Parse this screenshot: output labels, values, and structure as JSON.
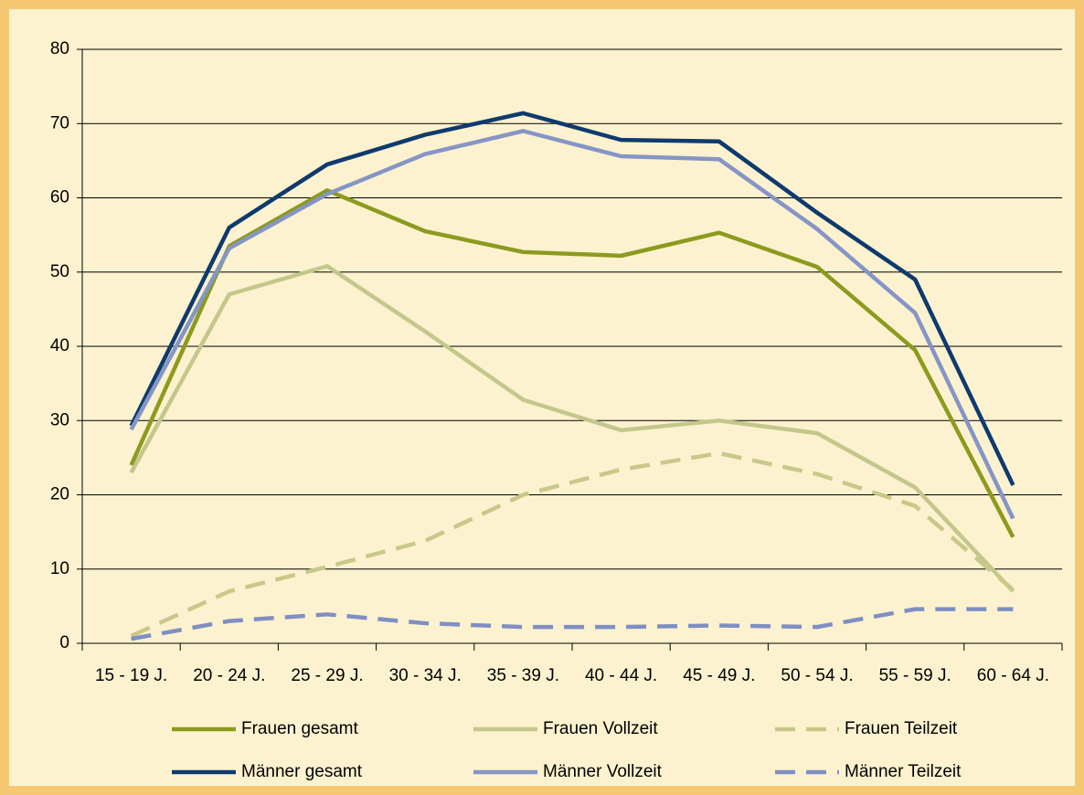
{
  "chart_data": {
    "type": "line",
    "categories": [
      "15 - 19 J.",
      "20 - 24 J.",
      "25 - 29 J.",
      "30 - 34 J.",
      "35 - 39 J.",
      "40 - 44 J.",
      "45 - 49 J.",
      "50 - 54 J.",
      "55 - 59 J.",
      "60 - 64 J."
    ],
    "series": [
      {
        "name": "Frauen gesamt",
        "color": "#8c9a1e",
        "dashed": false,
        "values": [
          24,
          53.5,
          61,
          55.5,
          52.7,
          52.2,
          55.3,
          50.7,
          39.5,
          14.3
        ]
      },
      {
        "name": "Frauen Vollzeit",
        "color": "#c4c78c",
        "dashed": false,
        "values": [
          23,
          47,
          50.8,
          42,
          32.8,
          28.7,
          30,
          28.3,
          21,
          7
        ]
      },
      {
        "name": "Frauen Teilzeit",
        "color": "#c8c88a",
        "dashed": true,
        "values": [
          1,
          7,
          10.3,
          13.8,
          20,
          23.4,
          25.6,
          22.8,
          18.5,
          7.2
        ]
      },
      {
        "name": "Männer gesamt",
        "color": "#0e3a6e",
        "dashed": false,
        "values": [
          29.3,
          56,
          64.5,
          68.5,
          71.4,
          67.8,
          67.6,
          58,
          49,
          21.3
        ]
      },
      {
        "name": "Männer Vollzeit",
        "color": "#8595c5",
        "dashed": false,
        "values": [
          28.8,
          53.2,
          60.5,
          65.9,
          69,
          65.6,
          65.2,
          55.8,
          44.5,
          16.8
        ]
      },
      {
        "name": "Männer Teilzeit",
        "color": "#7f8fc4",
        "dashed": true,
        "values": [
          0.6,
          3,
          3.9,
          2.7,
          2.2,
          2.2,
          2.4,
          2.2,
          4.6,
          4.6
        ]
      }
    ],
    "ylim": [
      0,
      80
    ],
    "yticks": [
      0,
      10,
      20,
      30,
      40,
      50,
      60,
      70,
      80
    ],
    "grid": true
  }
}
